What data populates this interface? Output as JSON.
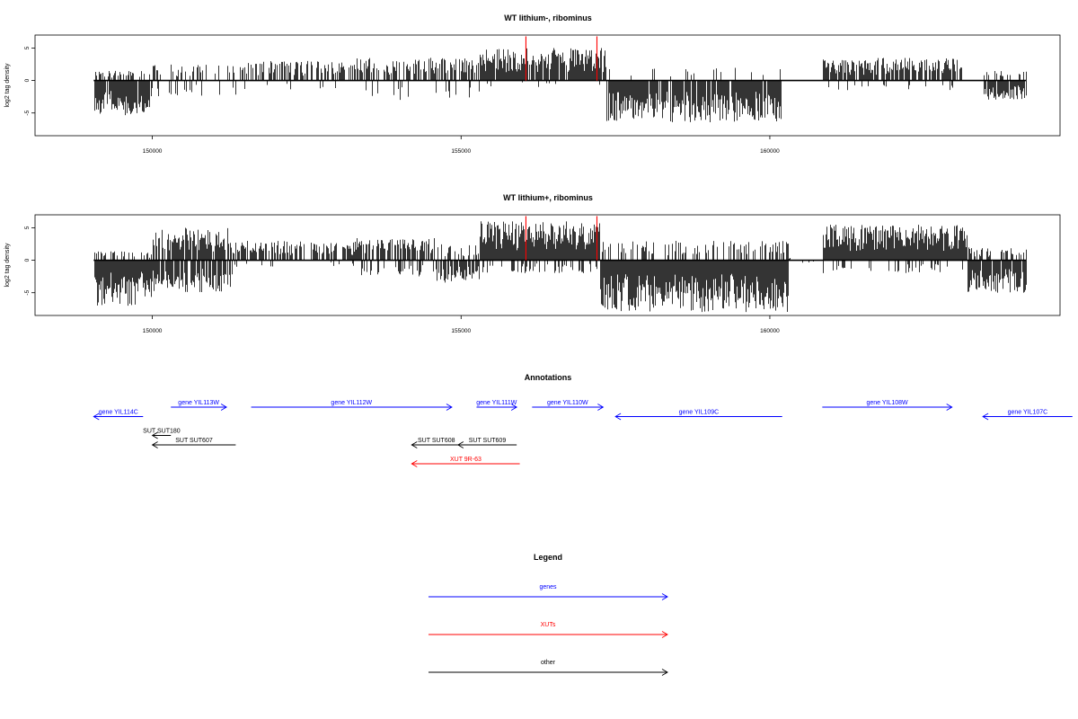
{
  "chart_data": [
    {
      "type": "bar",
      "title": "WT lithium-, ribominus",
      "ylabel": "log2 tag density",
      "xlim": [
        148100,
        164700
      ],
      "ylim": [
        -8.5,
        7
      ],
      "x_ticks": [
        150000,
        155000,
        160000
      ],
      "y_ticks": [
        -5,
        0,
        5
      ],
      "x_tick_labels": [
        "150000",
        "155000",
        "160000"
      ],
      "y_tick_labels": [
        "-5",
        "0",
        "5"
      ],
      "baseline_span": [
        149050,
        164150
      ],
      "highlight_color": "#ff0000",
      "highlight_x": [
        156050,
        157200
      ],
      "highlight_y": 6.8,
      "signal_segments": [
        {
          "from": 149050,
          "to": 149950,
          "pos": 1.5,
          "neg": -5.5,
          "density": 0.6,
          "neg_density": 0.95
        },
        {
          "from": 149950,
          "to": 151500,
          "pos": 2.5,
          "neg": -2.5,
          "density": 0.25,
          "neg_density": 0.15
        },
        {
          "from": 151500,
          "to": 153300,
          "pos": 3.0,
          "neg": -1.5,
          "density": 0.55,
          "neg_density": 0.05
        },
        {
          "from": 153300,
          "to": 155300,
          "pos": 3.5,
          "neg": -3.0,
          "density": 0.5,
          "neg_density": 0.1
        },
        {
          "from": 155300,
          "to": 157350,
          "pos": 5.0,
          "neg": -1.0,
          "density": 0.9,
          "neg_density": 0.05
        },
        {
          "from": 157350,
          "to": 160200,
          "pos": 2.0,
          "neg": -6.5,
          "density": 0.1,
          "neg_density": 0.9
        },
        {
          "from": 160200,
          "to": 160850,
          "pos": 0.3,
          "neg": -0.3,
          "density": 0.0,
          "neg_density": 0.0
        },
        {
          "from": 160850,
          "to": 163100,
          "pos": 3.5,
          "neg": -1.5,
          "density": 0.8,
          "neg_density": 0.1
        },
        {
          "from": 163100,
          "to": 163450,
          "pos": 0.3,
          "neg": -0.3,
          "density": 0.0,
          "neg_density": 0.0
        },
        {
          "from": 163450,
          "to": 164150,
          "pos": 1.5,
          "neg": -3.0,
          "density": 0.2,
          "neg_density": 0.75
        }
      ]
    },
    {
      "type": "bar",
      "title": "WT lithium+, ribominus",
      "ylabel": "log2 tag density",
      "xlim": [
        148100,
        164700
      ],
      "ylim": [
        -8.5,
        7
      ],
      "x_ticks": [
        150000,
        155000,
        160000
      ],
      "y_ticks": [
        -5,
        0,
        5
      ],
      "x_tick_labels": [
        "150000",
        "155000",
        "160000"
      ],
      "y_tick_labels": [
        "-5",
        "0",
        "5"
      ],
      "baseline_span": [
        149050,
        164150
      ],
      "highlight_color": "#ff0000",
      "highlight_x": [
        156050,
        157200
      ],
      "highlight_y": 6.8,
      "signal_segments": [
        {
          "from": 149050,
          "to": 150000,
          "pos": 1.5,
          "neg": -7.0,
          "density": 0.3,
          "neg_density": 1.0
        },
        {
          "from": 150000,
          "to": 151300,
          "pos": 5.0,
          "neg": -5.0,
          "density": 0.85,
          "neg_density": 0.7
        },
        {
          "from": 151300,
          "to": 153300,
          "pos": 3.0,
          "neg": -1.0,
          "density": 0.7,
          "neg_density": 0.1
        },
        {
          "from": 153300,
          "to": 154600,
          "pos": 3.5,
          "neg": -2.5,
          "density": 0.7,
          "neg_density": 0.3
        },
        {
          "from": 154600,
          "to": 155300,
          "pos": 2.5,
          "neg": -3.5,
          "density": 0.4,
          "neg_density": 0.8
        },
        {
          "from": 155300,
          "to": 157250,
          "pos": 6.0,
          "neg": -2.0,
          "density": 1.0,
          "neg_density": 0.3
        },
        {
          "from": 157250,
          "to": 160300,
          "pos": 3.0,
          "neg": -8.0,
          "density": 0.4,
          "neg_density": 1.0
        },
        {
          "from": 160300,
          "to": 160850,
          "pos": 0.4,
          "neg": -0.4,
          "density": 0.1,
          "neg_density": 0.1
        },
        {
          "from": 160850,
          "to": 163200,
          "pos": 5.5,
          "neg": -2.0,
          "density": 1.0,
          "neg_density": 0.2
        },
        {
          "from": 163200,
          "to": 164150,
          "pos": 2.0,
          "neg": -5.0,
          "density": 0.4,
          "neg_density": 0.9
        }
      ]
    }
  ],
  "annotations": {
    "title": "Annotations",
    "items": [
      {
        "label": "gene YIL114C",
        "start": 149050,
        "end": 149850,
        "strand": "-",
        "row": 1,
        "color": "#0000ff"
      },
      {
        "label": "gene YIL113W",
        "start": 150300,
        "end": 151200,
        "strand": "+",
        "row": 0,
        "color": "#0000ff"
      },
      {
        "label": "gene YIL112W",
        "start": 151600,
        "end": 154850,
        "strand": "+",
        "row": 0,
        "color": "#0000ff"
      },
      {
        "label": "gene YIL111W",
        "start": 155250,
        "end": 155900,
        "strand": "+",
        "row": 0,
        "color": "#0000ff"
      },
      {
        "label": "gene YIL110W",
        "start": 156150,
        "end": 157300,
        "strand": "+",
        "row": 0,
        "color": "#0000ff"
      },
      {
        "label": "gene YIL109C",
        "start": 157500,
        "end": 160200,
        "strand": "-",
        "row": 1,
        "color": "#0000ff"
      },
      {
        "label": "gene YIL108W",
        "start": 160850,
        "end": 162950,
        "strand": "+",
        "row": 0,
        "color": "#0000ff"
      },
      {
        "label": "gene YIL107C",
        "start": 163450,
        "end": 164900,
        "strand": "-",
        "row": 1,
        "color": "#0000ff"
      },
      {
        "label": "SUT SUT180",
        "start": 150000,
        "end": 150300,
        "strand": "-",
        "row": 3,
        "color": "#000000"
      },
      {
        "label": "SUT SUT607",
        "start": 150000,
        "end": 151350,
        "strand": "-",
        "row": 4,
        "color": "#000000"
      },
      {
        "label": "SUT SUT608",
        "start": 154200,
        "end": 155000,
        "strand": "-",
        "row": 4,
        "color": "#000000"
      },
      {
        "label": "SUT SUT609",
        "start": 154950,
        "end": 155900,
        "strand": "-",
        "row": 4,
        "color": "#000000"
      },
      {
        "label": "XUT 9R-63",
        "start": 154200,
        "end": 155950,
        "strand": "-",
        "row": 6,
        "color": "#ff0000"
      }
    ]
  },
  "legend": {
    "title": "Legend",
    "items": [
      {
        "label": "genes",
        "color": "#0000ff"
      },
      {
        "label": "XUTs",
        "color": "#ff0000"
      },
      {
        "label": "other",
        "color": "#000000"
      }
    ]
  }
}
